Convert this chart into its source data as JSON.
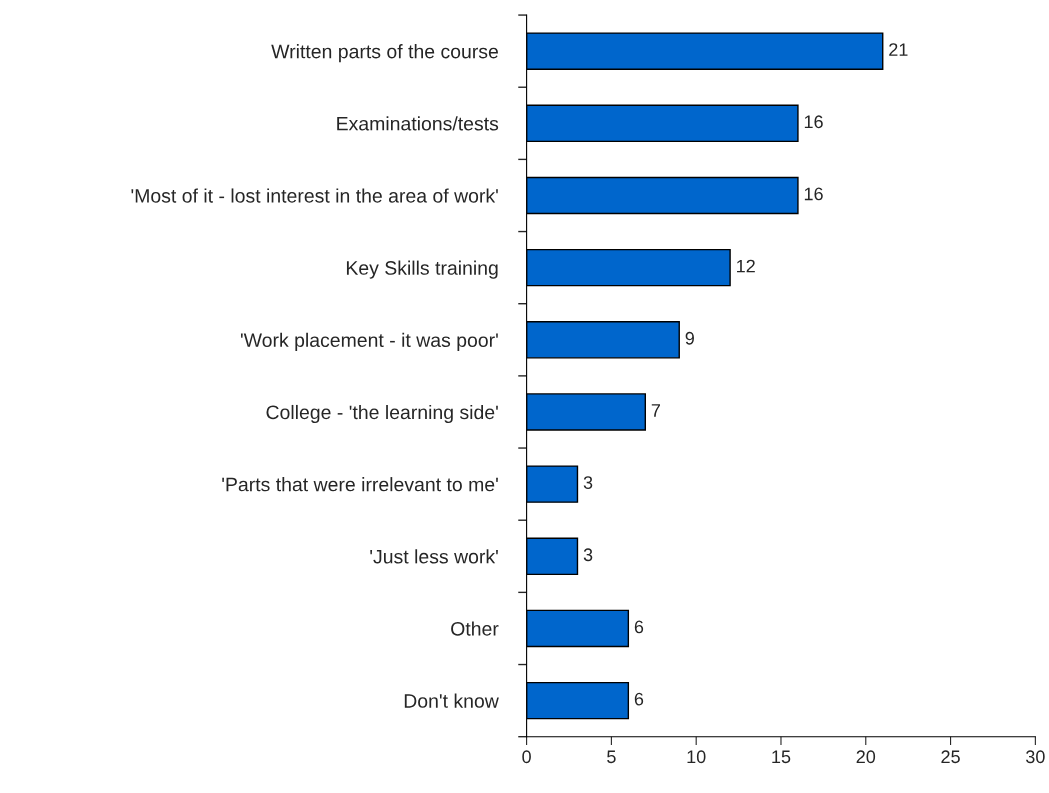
{
  "chart_data": {
    "type": "bar",
    "orientation": "horizontal",
    "categories": [
      "Written parts of the course",
      "Examinations/tests",
      "'Most of it - lost interest in the area of work'",
      "Key Skills training",
      "'Work placement - it was poor'",
      "College - 'the learning side'",
      "'Parts that were irrelevant to me'",
      "'Just less work'",
      "Other",
      "Don't know"
    ],
    "values": [
      21,
      16,
      16,
      12,
      9,
      7,
      3,
      3,
      6,
      6
    ],
    "color": "#0066cc",
    "xlim": [
      0,
      30
    ],
    "xticks": [
      0,
      5,
      10,
      15,
      20,
      25,
      30
    ],
    "data_labels": true,
    "grid": false,
    "legend": false
  }
}
